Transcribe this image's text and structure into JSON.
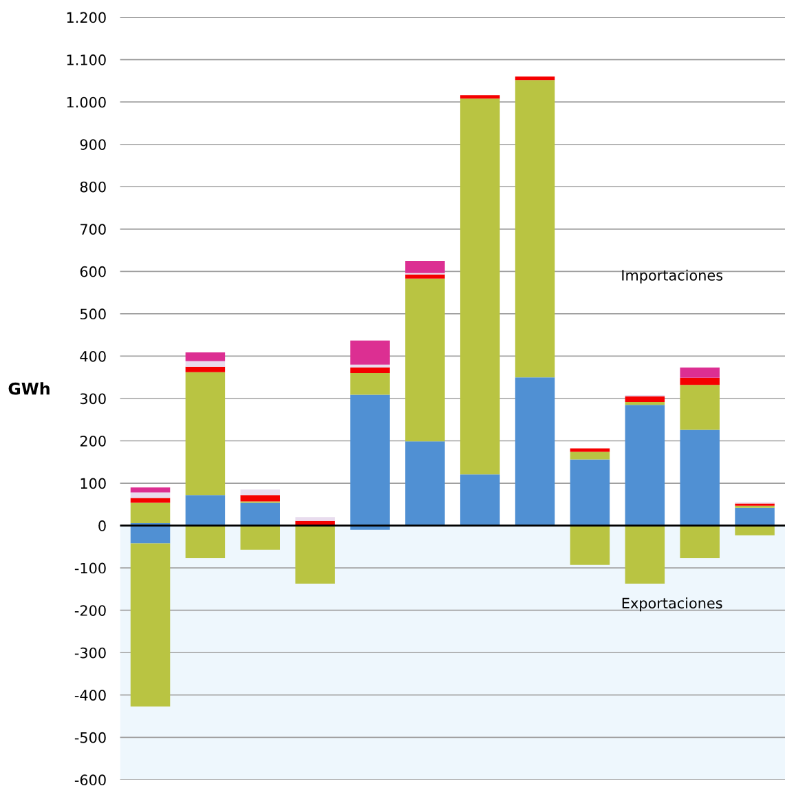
{
  "chart_data": {
    "type": "bar",
    "stacked": true,
    "ylabel": "GWh",
    "categories": [
      null,
      null,
      null,
      null,
      null,
      null,
      null,
      null,
      null,
      null,
      null,
      null
    ],
    "series": [
      {
        "color": "#5090d3",
        "values": [
          6,
          72,
          54,
          0,
          309,
          199,
          121,
          350,
          156,
          285,
          226,
          42
        ]
      },
      {
        "color": "#b9c442",
        "values": [
          48,
          290,
          3,
          0,
          51,
          384,
          887,
          702,
          18,
          7,
          106,
          5
        ]
      },
      {
        "color": "#f50000",
        "values": [
          11,
          13,
          15,
          11,
          13,
          10,
          8,
          8,
          8,
          13,
          17,
          5
        ]
      },
      {
        "color": "#e8dcee",
        "values": [
          13,
          13,
          13,
          9,
          7,
          3,
          0,
          0,
          0,
          3,
          0,
          3
        ]
      },
      {
        "color": "#dc2f92",
        "values": [
          12,
          21,
          0,
          0,
          57,
          29,
          0,
          0,
          0,
          0,
          24,
          0
        ]
      },
      {
        "color": "#5090d3",
        "values": [
          -42,
          0,
          0,
          0,
          -10,
          0,
          0,
          0,
          0,
          0,
          0,
          null
        ]
      },
      {
        "color": "#b9c442",
        "values": [
          -385,
          -77,
          -57,
          -137,
          0,
          0,
          0,
          0,
          -93,
          -137,
          -77,
          -23
        ]
      }
    ],
    "ylim": [
      -600,
      1200
    ],
    "yticks": [
      {
        "value": -600,
        "label": "-600"
      },
      {
        "value": -500,
        "label": "-500"
      },
      {
        "value": -400,
        "label": "-400"
      },
      {
        "value": -300,
        "label": "-300"
      },
      {
        "value": -200,
        "label": "-200"
      },
      {
        "value": -100,
        "label": "-100"
      },
      0,
      100,
      200,
      300,
      400,
      500,
      600,
      700,
      800,
      900,
      {
        "value": 1000,
        "label": "1.000"
      },
      {
        "value": 1100,
        "label": "1.100"
      },
      {
        "value": 1200,
        "label": "1.200"
      }
    ],
    "grid": "y",
    "legend": false,
    "ref_lines": [
      {
        "axis": "y",
        "value": 0,
        "color": "#000000"
      }
    ],
    "bands": [
      {
        "axis": "y",
        "from": -600,
        "to": 0,
        "color": "#eef7fd"
      }
    ],
    "annotations": [
      "Importaciones",
      "Exportaciones"
    ]
  }
}
